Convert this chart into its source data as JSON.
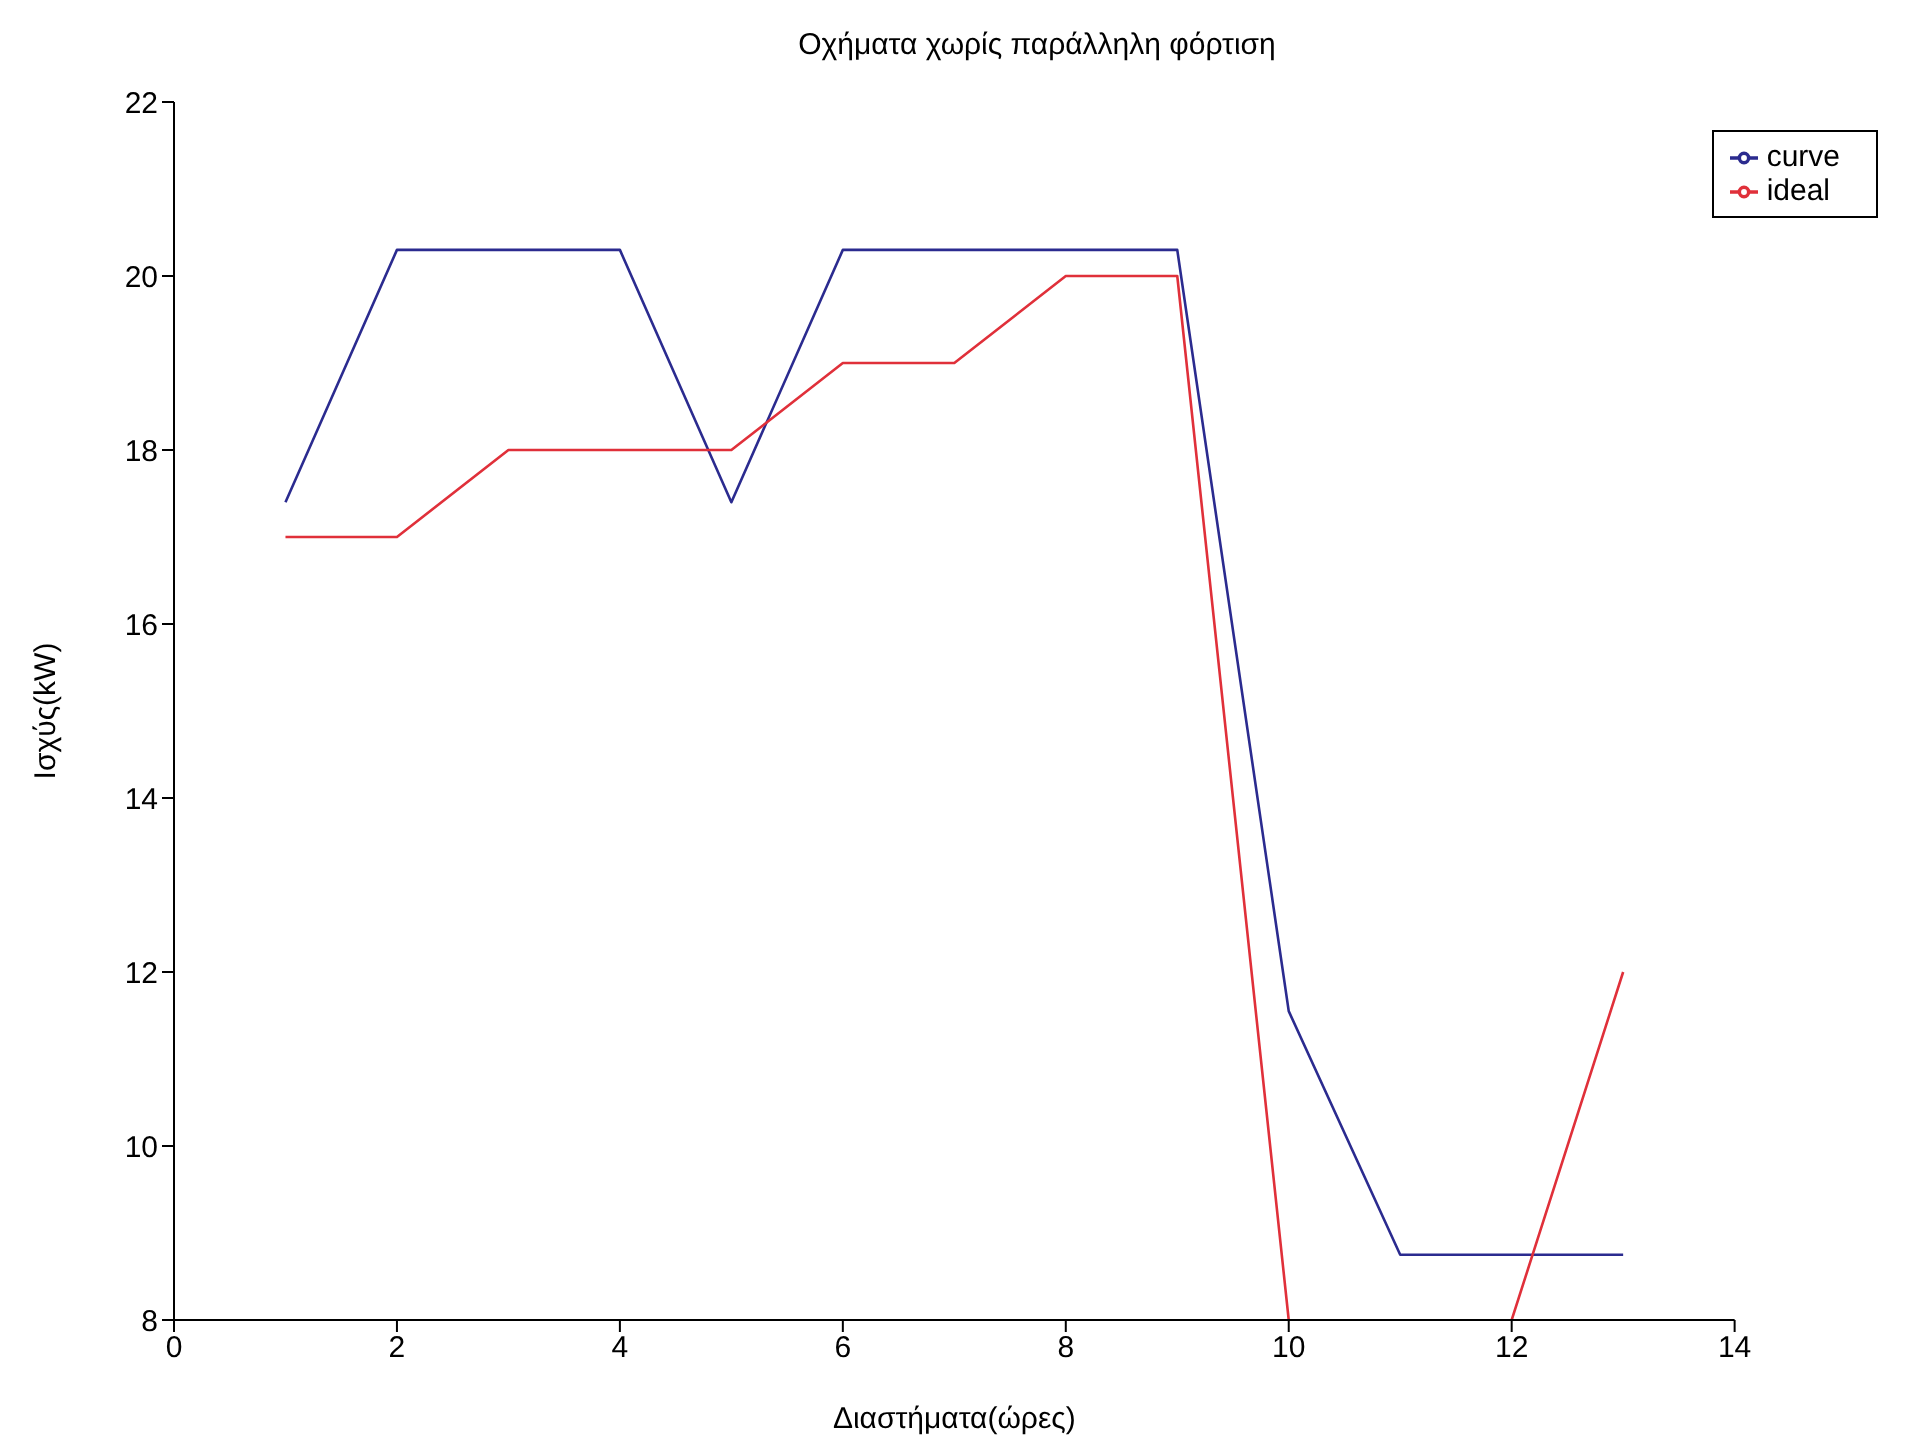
{
  "chart_data": {
    "type": "line",
    "title": "Οχήματα χωρίς παράλληλη φόρτιση",
    "xlabel": "Διαστήματα(ώρες)",
    "ylabel": "Ισχύς(kW)",
    "x": [
      1,
      2,
      3,
      4,
      5,
      6,
      7,
      8,
      9,
      10,
      11,
      12,
      13
    ],
    "series": [
      {
        "name": "curve",
        "color": "#2b2b8f",
        "values": [
          17.4,
          20.3,
          20.3,
          20.3,
          17.4,
          20.3,
          20.3,
          20.3,
          20.3,
          11.55,
          8.75,
          8.75,
          8.75
        ]
      },
      {
        "name": "ideal",
        "color": "#e0303a",
        "values": [
          17,
          17,
          18,
          18,
          18,
          19,
          19,
          20,
          20,
          8,
          null,
          8,
          12
        ]
      }
    ],
    "xlim": [
      0,
      14
    ],
    "xticks": [
      0,
      2,
      4,
      6,
      8,
      10,
      12,
      14
    ],
    "ylim": [
      8,
      22
    ],
    "yticks": [
      8,
      10,
      12,
      14,
      16,
      18,
      20,
      22
    ],
    "grid": false,
    "legend": "top right",
    "marker": "none",
    "line_style": "solid"
  }
}
